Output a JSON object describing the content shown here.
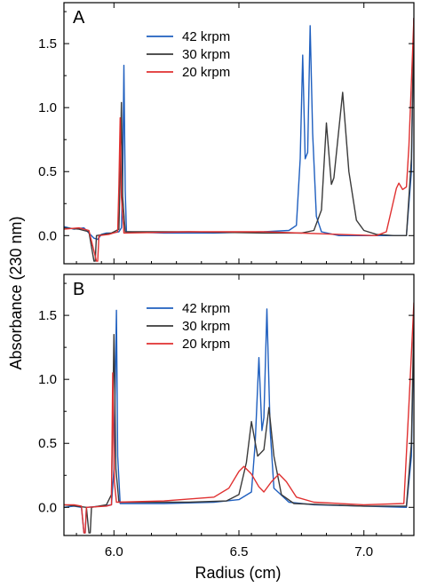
{
  "chart_data": [
    {
      "type": "line",
      "panel_label": "A",
      "xlabel": "Radius (cm)",
      "ylabel": "Absorbance (230 nm)",
      "xlim": [
        5.8,
        7.2
      ],
      "ylim": [
        -0.22,
        1.82
      ],
      "xticks": [
        6.0,
        6.5,
        7.0
      ],
      "yticks": [
        0.0,
        0.5,
        1.0,
        1.5
      ],
      "ytick_labels": [
        "0.0",
        "0.5",
        "1.0",
        "1.5"
      ],
      "legend_position": "top-center",
      "series": [
        {
          "name": "42 krpm",
          "color": "#1f5fbf",
          "points": [
            [
              5.8,
              0.07
            ],
            [
              5.84,
              0.05
            ],
            [
              5.88,
              0.06
            ],
            [
              5.9,
              0.02
            ],
            [
              5.92,
              -0.02
            ],
            [
              5.935,
              -0.03
            ],
            [
              5.95,
              0.01
            ],
            [
              5.97,
              0.02
            ],
            [
              5.99,
              0.02
            ],
            [
              6.02,
              0.03
            ],
            [
              6.03,
              0.06
            ],
            [
              6.035,
              0.4
            ],
            [
              6.04,
              1.33
            ],
            [
              6.045,
              0.35
            ],
            [
              6.05,
              0.03
            ],
            [
              6.2,
              0.02
            ],
            [
              6.4,
              0.02
            ],
            [
              6.6,
              0.03
            ],
            [
              6.7,
              0.04
            ],
            [
              6.73,
              0.08
            ],
            [
              6.745,
              0.6
            ],
            [
              6.755,
              1.41
            ],
            [
              6.765,
              0.6
            ],
            [
              6.775,
              0.65
            ],
            [
              6.785,
              1.64
            ],
            [
              6.795,
              0.8
            ],
            [
              6.81,
              0.15
            ],
            [
              6.83,
              0.03
            ],
            [
              6.9,
              0.0
            ],
            [
              7.0,
              0.0
            ],
            [
              7.1,
              0.0
            ],
            [
              7.17,
              0.0
            ],
            [
              7.19,
              0.5
            ],
            [
              7.2,
              1.7
            ]
          ]
        },
        {
          "name": "30 krpm",
          "color": "#3a3a3a",
          "points": [
            [
              5.8,
              0.06
            ],
            [
              5.86,
              0.05
            ],
            [
              5.9,
              0.03
            ],
            [
              5.92,
              -0.2
            ],
            [
              5.925,
              -0.2
            ],
            [
              5.93,
              0.0
            ],
            [
              5.96,
              0.01
            ],
            [
              5.99,
              0.02
            ],
            [
              6.02,
              0.05
            ],
            [
              6.025,
              0.5
            ],
            [
              6.03,
              1.04
            ],
            [
              6.035,
              0.3
            ],
            [
              6.045,
              0.03
            ],
            [
              6.3,
              0.03
            ],
            [
              6.6,
              0.02
            ],
            [
              6.75,
              0.02
            ],
            [
              6.8,
              0.04
            ],
            [
              6.83,
              0.2
            ],
            [
              6.85,
              0.88
            ],
            [
              6.87,
              0.4
            ],
            [
              6.88,
              0.45
            ],
            [
              6.915,
              1.12
            ],
            [
              6.94,
              0.5
            ],
            [
              6.97,
              0.12
            ],
            [
              7.0,
              0.04
            ],
            [
              7.05,
              0.01
            ],
            [
              7.12,
              0.0
            ],
            [
              7.17,
              0.0
            ],
            [
              7.19,
              0.6
            ],
            [
              7.2,
              1.7
            ]
          ]
        },
        {
          "name": "20 krpm",
          "color": "#e03030",
          "points": [
            [
              5.8,
              0.05
            ],
            [
              5.86,
              0.06
            ],
            [
              5.9,
              0.04
            ],
            [
              5.93,
              -0.2
            ],
            [
              5.935,
              -0.2
            ],
            [
              5.94,
              0.0
            ],
            [
              5.98,
              0.01
            ],
            [
              6.015,
              0.03
            ],
            [
              6.02,
              0.4
            ],
            [
              6.025,
              0.92
            ],
            [
              6.03,
              0.3
            ],
            [
              6.04,
              0.02
            ],
            [
              6.3,
              0.03
            ],
            [
              6.6,
              0.03
            ],
            [
              6.9,
              0.01
            ],
            [
              7.05,
              0.0
            ],
            [
              7.09,
              0.03
            ],
            [
              7.11,
              0.2
            ],
            [
              7.13,
              0.37
            ],
            [
              7.14,
              0.41
            ],
            [
              7.155,
              0.36
            ],
            [
              7.17,
              0.38
            ],
            [
              7.18,
              0.7
            ],
            [
              7.19,
              1.2
            ],
            [
              7.2,
              1.7
            ]
          ]
        }
      ]
    },
    {
      "type": "line",
      "panel_label": "B",
      "xlabel": "Radius (cm)",
      "ylabel": "Absorbance (230 nm)",
      "xlim": [
        5.8,
        7.2
      ],
      "ylim": [
        -0.22,
        1.82
      ],
      "xticks": [
        6.0,
        6.5,
        7.0
      ],
      "xtick_labels": [
        "6.0",
        "6.5",
        "7.0"
      ],
      "yticks": [
        0.0,
        0.5,
        1.0,
        1.5
      ],
      "ytick_labels": [
        "0.0",
        "0.5",
        "1.0",
        "1.5"
      ],
      "legend_position": "top-center",
      "series": [
        {
          "name": "42 krpm",
          "color": "#1f5fbf",
          "points": [
            [
              5.8,
              0.0
            ],
            [
              5.84,
              0.01
            ],
            [
              5.87,
              0.0
            ],
            [
              5.88,
              -0.2
            ],
            [
              5.885,
              -0.2
            ],
            [
              5.89,
              0.0
            ],
            [
              5.95,
              0.01
            ],
            [
              5.99,
              0.02
            ],
            [
              6.0,
              0.3
            ],
            [
              6.01,
              1.54
            ],
            [
              6.015,
              0.4
            ],
            [
              6.025,
              0.03
            ],
            [
              6.2,
              0.03
            ],
            [
              6.4,
              0.04
            ],
            [
              6.5,
              0.06
            ],
            [
              6.55,
              0.12
            ],
            [
              6.565,
              0.5
            ],
            [
              6.58,
              1.17
            ],
            [
              6.592,
              0.6
            ],
            [
              6.6,
              0.7
            ],
            [
              6.612,
              1.55
            ],
            [
              6.625,
              0.6
            ],
            [
              6.64,
              0.15
            ],
            [
              6.7,
              0.04
            ],
            [
              6.8,
              0.02
            ],
            [
              7.0,
              0.01
            ],
            [
              7.17,
              0.0
            ],
            [
              7.19,
              0.4
            ],
            [
              7.2,
              1.4
            ]
          ]
        },
        {
          "name": "30 krpm",
          "color": "#3a3a3a",
          "points": [
            [
              5.8,
              0.02
            ],
            [
              5.85,
              0.01
            ],
            [
              5.89,
              0.0
            ],
            [
              5.9,
              -0.2
            ],
            [
              5.905,
              -0.2
            ],
            [
              5.91,
              0.0
            ],
            [
              5.97,
              0.02
            ],
            [
              5.99,
              0.1
            ],
            [
              6.0,
              1.35
            ],
            [
              6.008,
              0.3
            ],
            [
              6.02,
              0.04
            ],
            [
              6.3,
              0.04
            ],
            [
              6.45,
              0.05
            ],
            [
              6.5,
              0.1
            ],
            [
              6.53,
              0.35
            ],
            [
              6.55,
              0.67
            ],
            [
              6.575,
              0.4
            ],
            [
              6.6,
              0.45
            ],
            [
              6.62,
              0.78
            ],
            [
              6.64,
              0.4
            ],
            [
              6.67,
              0.1
            ],
            [
              6.72,
              0.03
            ],
            [
              6.85,
              0.02
            ],
            [
              7.0,
              0.01
            ],
            [
              7.17,
              0.01
            ],
            [
              7.19,
              0.5
            ],
            [
              7.2,
              1.5
            ]
          ]
        },
        {
          "name": "20 krpm",
          "color": "#e03030",
          "points": [
            [
              5.8,
              0.02
            ],
            [
              5.84,
              0.02
            ],
            [
              5.87,
              0.01
            ],
            [
              5.88,
              -0.2
            ],
            [
              5.885,
              -0.2
            ],
            [
              5.89,
              0.0
            ],
            [
              5.97,
              0.01
            ],
            [
              5.99,
              0.02
            ],
            [
              5.995,
              1.05
            ],
            [
              6.002,
              0.2
            ],
            [
              6.01,
              0.04
            ],
            [
              6.2,
              0.05
            ],
            [
              6.4,
              0.08
            ],
            [
              6.46,
              0.15
            ],
            [
              6.5,
              0.28
            ],
            [
              6.52,
              0.32
            ],
            [
              6.55,
              0.26
            ],
            [
              6.58,
              0.16
            ],
            [
              6.6,
              0.12
            ],
            [
              6.63,
              0.2
            ],
            [
              6.66,
              0.26
            ],
            [
              6.69,
              0.2
            ],
            [
              6.73,
              0.08
            ],
            [
              6.8,
              0.04
            ],
            [
              7.0,
              0.02
            ],
            [
              7.16,
              0.03
            ],
            [
              7.18,
              0.8
            ],
            [
              7.2,
              1.6
            ]
          ]
        }
      ]
    }
  ],
  "figure": {
    "ylabel": "Absorbance (230 nm)",
    "xlabel": "Radius (cm)"
  }
}
